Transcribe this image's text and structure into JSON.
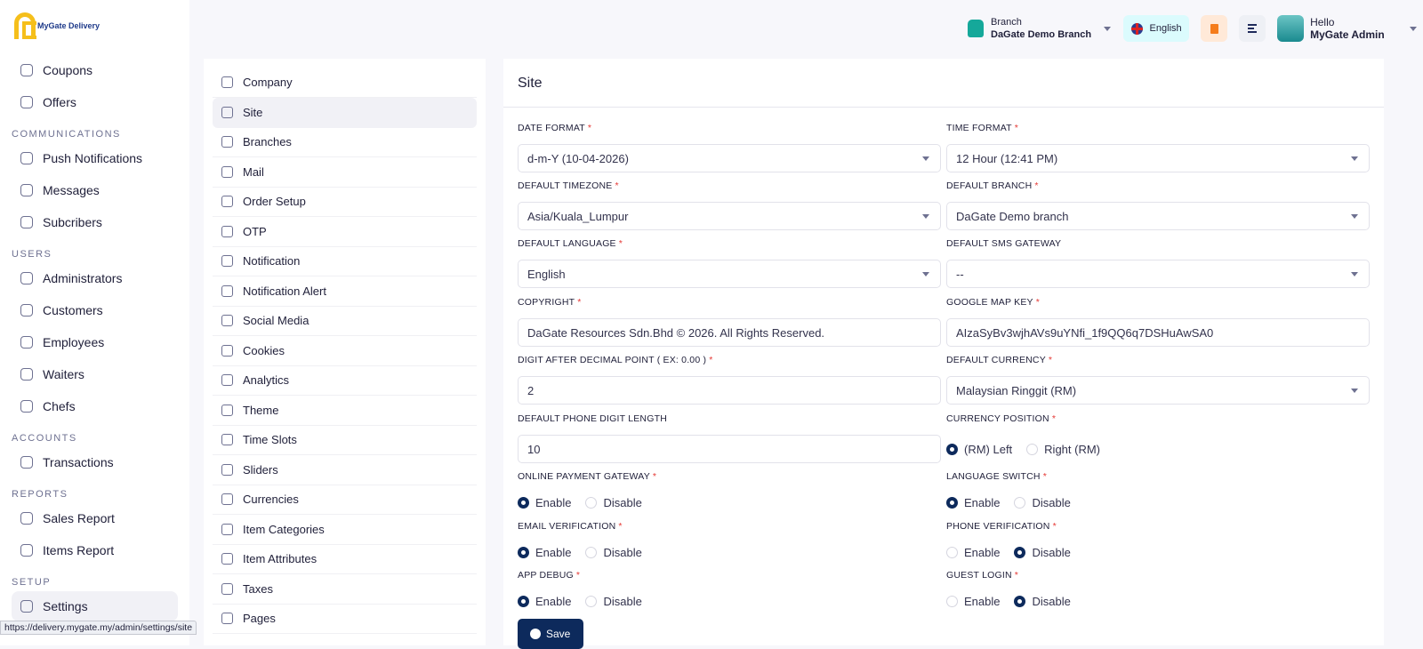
{
  "brand": {
    "name": "MyGate Delivery",
    "accent": "#f5bf1b"
  },
  "sidebar": [
    {
      "type": "item",
      "label": "Coupons",
      "icon": "coupon-icon"
    },
    {
      "type": "item",
      "label": "Offers",
      "icon": "offer-icon"
    },
    {
      "type": "section",
      "label": "COMMUNICATIONS"
    },
    {
      "type": "item",
      "label": "Push Notifications",
      "icon": "push-notification-icon"
    },
    {
      "type": "item",
      "label": "Messages",
      "icon": "messages-icon"
    },
    {
      "type": "item",
      "label": "Subcribers",
      "icon": "subscribers-icon"
    },
    {
      "type": "section",
      "label": "USERS"
    },
    {
      "type": "item",
      "label": "Administrators",
      "icon": "user-icon"
    },
    {
      "type": "item",
      "label": "Customers",
      "icon": "customers-icon"
    },
    {
      "type": "item",
      "label": "Employees",
      "icon": "employees-icon"
    },
    {
      "type": "item",
      "label": "Waiters",
      "icon": "waiter-icon"
    },
    {
      "type": "item",
      "label": "Chefs",
      "icon": "chef-icon"
    },
    {
      "type": "section",
      "label": "ACCOUNTS"
    },
    {
      "type": "item",
      "label": "Transactions",
      "icon": "transactions-icon"
    },
    {
      "type": "section",
      "label": "REPORTS"
    },
    {
      "type": "item",
      "label": "Sales Report",
      "icon": "sales-report-icon"
    },
    {
      "type": "item",
      "label": "Items Report",
      "icon": "items-report-icon"
    },
    {
      "type": "section",
      "label": "SETUP"
    },
    {
      "type": "item",
      "label": "Settings",
      "icon": "gear-icon",
      "active": true
    }
  ],
  "header": {
    "branch_label": "Branch",
    "branch_value": "DaGate Demo Branch",
    "language": "English",
    "hello": "Hello",
    "user": "MyGate Admin"
  },
  "settings_menu": [
    {
      "label": "Company",
      "icon": "company-icon"
    },
    {
      "label": "Site",
      "icon": "site-icon",
      "active": true
    },
    {
      "label": "Branches",
      "icon": "branches-icon"
    },
    {
      "label": "Mail",
      "icon": "mail-icon"
    },
    {
      "label": "Order Setup",
      "icon": "order-setup-icon"
    },
    {
      "label": "OTP",
      "icon": "otp-icon"
    },
    {
      "label": "Notification",
      "icon": "bell-icon"
    },
    {
      "label": "Notification Alert",
      "icon": "notification-alert-icon"
    },
    {
      "label": "Social Media",
      "icon": "social-media-icon"
    },
    {
      "label": "Cookies",
      "icon": "cookies-icon"
    },
    {
      "label": "Analytics",
      "icon": "analytics-icon"
    },
    {
      "label": "Theme",
      "icon": "theme-icon"
    },
    {
      "label": "Time Slots",
      "icon": "clock-icon"
    },
    {
      "label": "Sliders",
      "icon": "sliders-icon"
    },
    {
      "label": "Currencies",
      "icon": "currency-icon"
    },
    {
      "label": "Item Categories",
      "icon": "categories-icon"
    },
    {
      "label": "Item Attributes",
      "icon": "attributes-icon"
    },
    {
      "label": "Taxes",
      "icon": "tax-icon"
    },
    {
      "label": "Pages",
      "icon": "pages-icon"
    }
  ],
  "site": {
    "title": "Site",
    "fields": [
      {
        "label": "Date Format",
        "required": true,
        "kind": "select",
        "value": "d-m-Y (10-04-2026)"
      },
      {
        "label": "Time Format",
        "required": true,
        "kind": "select",
        "value": "12 Hour (12:41 PM)"
      },
      {
        "label": "Default Timezone",
        "required": true,
        "kind": "select",
        "value": "Asia/Kuala_Lumpur"
      },
      {
        "label": "Default Branch",
        "required": true,
        "kind": "select",
        "value": "DaGate Demo branch"
      },
      {
        "label": "Default Language",
        "required": true,
        "kind": "select",
        "value": "English"
      },
      {
        "label": "Default SMS Gateway",
        "required": false,
        "kind": "select",
        "value": "--"
      },
      {
        "label": "Copyright",
        "required": true,
        "kind": "text",
        "value": "DaGate Resources Sdn.Bhd © 2026. All Rights Reserved."
      },
      {
        "label": "Google Map Key",
        "required": true,
        "kind": "text",
        "value": "AIzaSyBv3wjhAVs9uYNfi_1f9QQ6q7DSHuAwSA0"
      },
      {
        "label": "Digit After Decimal Point ( EX: 0.00 )",
        "required": true,
        "kind": "text",
        "value": "2"
      },
      {
        "label": "Default Currency",
        "required": true,
        "kind": "select",
        "value": "Malaysian Ringgit (RM)"
      },
      {
        "label": "Default Phone Digit Length",
        "required": false,
        "kind": "text",
        "value": "10"
      },
      {
        "label": "Currency Position",
        "required": true,
        "kind": "radio",
        "options": [
          "(RM) Left",
          "Right (RM)"
        ],
        "selected": 0
      },
      {
        "label": "Online Payment Gateway",
        "required": true,
        "kind": "radio",
        "options": [
          "Enable",
          "Disable"
        ],
        "selected": 0
      },
      {
        "label": "Language Switch",
        "required": true,
        "kind": "radio",
        "options": [
          "Enable",
          "Disable"
        ],
        "selected": 0
      },
      {
        "label": "Email Verification",
        "required": true,
        "kind": "radio",
        "options": [
          "Enable",
          "Disable"
        ],
        "selected": 0
      },
      {
        "label": "Phone Verification",
        "required": true,
        "kind": "radio",
        "options": [
          "Enable",
          "Disable"
        ],
        "selected": 1
      },
      {
        "label": "App Debug",
        "required": true,
        "kind": "radio",
        "options": [
          "Enable",
          "Disable"
        ],
        "selected": 0
      },
      {
        "label": "Guest Login",
        "required": true,
        "kind": "radio",
        "options": [
          "Enable",
          "Disable"
        ],
        "selected": 1
      }
    ],
    "save_label": "Save"
  },
  "status_url": "https://delivery.mygate.my/admin/settings/site"
}
